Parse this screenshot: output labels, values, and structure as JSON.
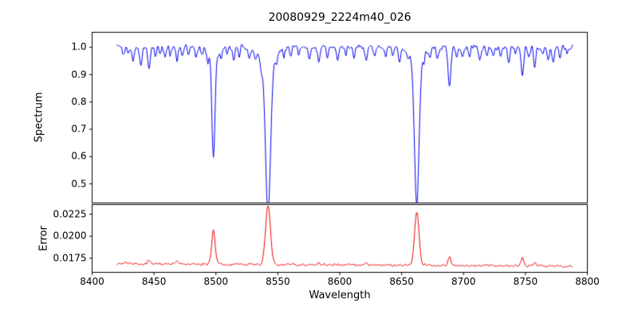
{
  "chart_data": [
    {
      "type": "line",
      "panel": "spectrum",
      "title": "20080929_2224m40_026",
      "xlabel": "",
      "ylabel": "Spectrum",
      "xlim": [
        8400,
        8800
      ],
      "ylim": [
        0.43,
        1.055
      ],
      "yticks": [
        0.5,
        0.6,
        0.7,
        0.8,
        0.9,
        1.0
      ],
      "ytick_labels": [
        "0.5",
        "0.6",
        "0.7",
        "0.8",
        "0.9",
        "1.0"
      ],
      "line_color": "#0000ee",
      "x_start": 8420,
      "x_end": 8788,
      "x_step": 0.5,
      "continuum": 1.0,
      "noise_amplitude": 0.014,
      "absorption_lines": {
        "columns": [
          "center",
          "depth",
          "sigma"
        ],
        "rows": [
          [
            8498.0,
            0.365,
            1.2
          ],
          [
            8498.0,
            0.04,
            4.0
          ],
          [
            8542.1,
            0.55,
            2.0
          ],
          [
            8542.1,
            0.06,
            6.0
          ],
          [
            8662.2,
            0.53,
            1.8
          ],
          [
            8662.2,
            0.05,
            5.5
          ],
          [
            8688.6,
            0.14,
            1.1
          ],
          [
            8425.5,
            0.03,
            0.8
          ],
          [
            8429.0,
            0.025,
            0.7
          ],
          [
            8433.0,
            0.05,
            0.9
          ],
          [
            8439.5,
            0.065,
            1.0
          ],
          [
            8446.0,
            0.075,
            0.9
          ],
          [
            8451.0,
            0.03,
            0.7
          ],
          [
            8455.0,
            0.025,
            0.7
          ],
          [
            8459.0,
            0.04,
            0.8
          ],
          [
            8463.0,
            0.03,
            0.7
          ],
          [
            8468.5,
            0.05,
            0.9
          ],
          [
            8473.0,
            0.03,
            0.7
          ],
          [
            8478.0,
            0.03,
            0.7
          ],
          [
            8484.0,
            0.04,
            0.8
          ],
          [
            8489.0,
            0.025,
            0.7
          ],
          [
            8493.5,
            0.03,
            0.7
          ],
          [
            8504.0,
            0.03,
            0.7
          ],
          [
            8509.0,
            0.025,
            0.7
          ],
          [
            8514.3,
            0.05,
            0.9
          ],
          [
            8519.0,
            0.03,
            0.7
          ],
          [
            8527.0,
            0.04,
            0.8
          ],
          [
            8532.0,
            0.03,
            0.7
          ],
          [
            8536.5,
            0.04,
            0.8
          ],
          [
            8549.0,
            0.03,
            0.7
          ],
          [
            8555.0,
            0.03,
            0.7
          ],
          [
            8560.5,
            0.04,
            0.8
          ],
          [
            8567.0,
            0.03,
            0.7
          ],
          [
            8575.5,
            0.04,
            0.8
          ],
          [
            8583.0,
            0.05,
            0.9
          ],
          [
            8590.0,
            0.03,
            0.7
          ],
          [
            8598.5,
            0.05,
            0.9
          ],
          [
            8605.0,
            0.03,
            0.7
          ],
          [
            8611.5,
            0.04,
            0.8
          ],
          [
            8621.5,
            0.05,
            0.9
          ],
          [
            8628.0,
            0.03,
            0.7
          ],
          [
            8637.0,
            0.04,
            0.8
          ],
          [
            8643.0,
            0.03,
            0.7
          ],
          [
            8648.5,
            0.05,
            0.9
          ],
          [
            8655.0,
            0.03,
            0.7
          ],
          [
            8668.0,
            0.03,
            0.7
          ],
          [
            8673.0,
            0.04,
            0.8
          ],
          [
            8679.0,
            0.04,
            0.8
          ],
          [
            8694.5,
            0.035,
            0.7
          ],
          [
            8699.0,
            0.04,
            0.8
          ],
          [
            8705.0,
            0.03,
            0.7
          ],
          [
            8713.0,
            0.05,
            0.9
          ],
          [
            8719.0,
            0.03,
            0.7
          ],
          [
            8724.0,
            0.04,
            0.8
          ],
          [
            8730.0,
            0.03,
            0.7
          ],
          [
            8736.5,
            0.055,
            0.9
          ],
          [
            8742.0,
            0.03,
            0.7
          ],
          [
            8747.5,
            0.1,
            1.1
          ],
          [
            8752.5,
            0.04,
            0.8
          ],
          [
            8757.5,
            0.065,
            0.9
          ],
          [
            8764.0,
            0.03,
            0.7
          ],
          [
            8768.5,
            0.04,
            0.8
          ],
          [
            8772.5,
            0.055,
            0.9
          ],
          [
            8778.0,
            0.04,
            0.8
          ],
          [
            8783.5,
            0.03,
            0.7
          ]
        ]
      }
    },
    {
      "type": "line",
      "panel": "error",
      "xlabel": "Wavelength",
      "ylabel": "Error",
      "xlim": [
        8400,
        8800
      ],
      "ylim": [
        0.0159,
        0.0236
      ],
      "yticks": [
        0.0175,
        0.02,
        0.0225
      ],
      "ytick_labels": [
        "0.0175",
        "0.0200",
        "0.0225"
      ],
      "xticks": [
        8400,
        8450,
        8500,
        8550,
        8600,
        8650,
        8700,
        8750,
        8800
      ],
      "xtick_labels": [
        "8400",
        "8450",
        "8500",
        "8550",
        "8600",
        "8650",
        "8700",
        "8750",
        "8800"
      ],
      "line_color": "#ee0000",
      "baseline": 0.0169,
      "baseline_slope": -8e-07,
      "noise_amplitude": 0.0002,
      "peaks": {
        "columns": [
          "center",
          "height",
          "sigma"
        ],
        "rows": [
          [
            8498.0,
            0.0038,
            1.4
          ],
          [
            8542.1,
            0.0066,
            2.0
          ],
          [
            8662.2,
            0.006,
            1.8
          ],
          [
            8688.6,
            0.001,
            1.2
          ],
          [
            8446.0,
            0.0004,
            1.0
          ],
          [
            8468.0,
            0.0003,
            1.0
          ],
          [
            8583.0,
            0.0003,
            1.0
          ],
          [
            8621.0,
            0.0003,
            1.0
          ],
          [
            8747.5,
            0.0008,
            1.3
          ],
          [
            8757.5,
            0.0005,
            1.0
          ]
        ]
      }
    }
  ]
}
